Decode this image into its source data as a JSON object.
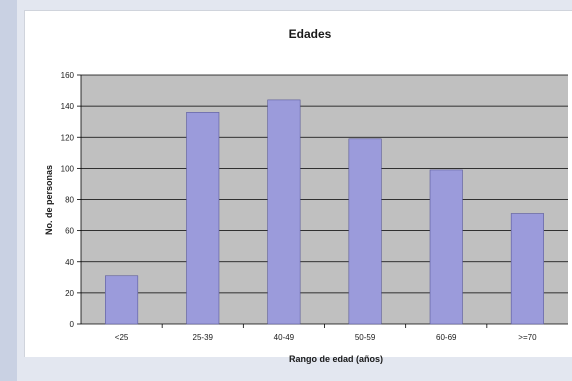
{
  "chart_data": {
    "type": "bar",
    "title": "Edades",
    "xlabel": "Rango de edad (años)",
    "ylabel": "No. de personas",
    "categories": [
      "<25",
      "25-39",
      "40-49",
      "50-59",
      "60-69",
      ">=70"
    ],
    "values": [
      31,
      136,
      144,
      119,
      99,
      71
    ],
    "ylim": [
      0,
      160
    ],
    "yticks": [
      0,
      20,
      40,
      60,
      80,
      100,
      120,
      140,
      160
    ],
    "grid": true,
    "legend": "none",
    "colors": {
      "bar": "#9b9bdb",
      "bar_border": "#5a5a9a",
      "plot_background": "#c0c0c0",
      "gridline": "#000000"
    }
  }
}
